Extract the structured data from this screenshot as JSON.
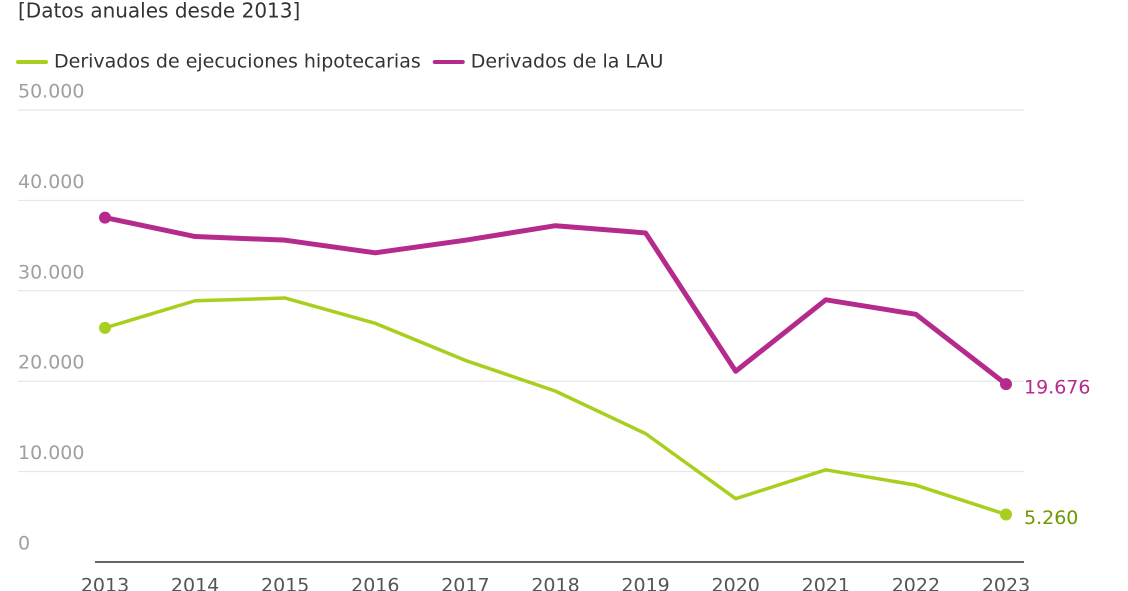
{
  "chart_data": {
    "type": "line",
    "subtitle": "[Datos anuales desde 2013]",
    "categories": [
      "2013",
      "2014",
      "2015",
      "2016",
      "2017",
      "2018",
      "2019",
      "2020",
      "2021",
      "2022",
      "2023"
    ],
    "series": [
      {
        "name": "Derivados de ejecuciones hipotecarias",
        "color": "#a8cf1e",
        "label_color": "#6c9a00",
        "values": [
          25900,
          28900,
          29200,
          26400,
          22300,
          18900,
          14200,
          7000,
          10200,
          8500,
          5260
        ],
        "value_labels": [
          null,
          null,
          null,
          null,
          null,
          null,
          null,
          null,
          null,
          null,
          "5.260"
        ]
      },
      {
        "name": "Derivados de la LAU",
        "color": "#b52b8c",
        "label_color": "#b52b8c",
        "values": [
          38100,
          36000,
          35600,
          34200,
          35600,
          37200,
          36400,
          21100,
          29000,
          27400,
          19676
        ],
        "value_labels": [
          null,
          null,
          null,
          null,
          null,
          null,
          null,
          null,
          null,
          null,
          "19.676"
        ]
      }
    ],
    "ylim": [
      0,
      50000
    ],
    "yticks": [
      0,
      {
        "value": 10000,
        "label": "10.000"
      },
      {
        "value": 20000,
        "label": "20.000"
      },
      {
        "value": 30000,
        "label": "30.000"
      },
      {
        "value": 40000,
        "label": "40.000"
      },
      {
        "value": 50000,
        "label": "50.000"
      }
    ],
    "grid": true
  }
}
